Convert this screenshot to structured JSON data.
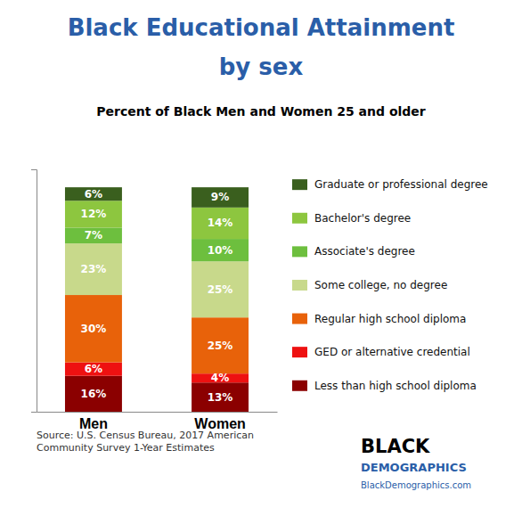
{
  "chart_data": {
    "type": "bar",
    "stacked": true,
    "title": "Black Educational Attainment\nby sex",
    "subtitle": "Percent of Black Men and Women 25 and older",
    "categories": [
      "Men",
      "Women"
    ],
    "series": [
      {
        "name": "Less than high school diploma",
        "color": "#8B0000",
        "values": [
          16,
          13
        ],
        "value_labels": [
          "16%",
          "13%"
        ]
      },
      {
        "name": "GED or alternative credential",
        "color": "#EE1111",
        "values": [
          6,
          4
        ],
        "value_labels": [
          "6%",
          "4%"
        ]
      },
      {
        "name": "Regular high school diploma",
        "color": "#E8620A",
        "values": [
          30,
          25
        ],
        "value_labels": [
          "30%",
          "25%"
        ]
      },
      {
        "name": "Some college, no degree",
        "color": "#C8D98B",
        "values": [
          23,
          25
        ],
        "value_labels": [
          "23%",
          "25%"
        ]
      },
      {
        "name": "Associate's degree",
        "color": "#6DBF3E",
        "values": [
          7,
          10
        ],
        "value_labels": [
          "7%",
          "10%"
        ]
      },
      {
        "name": "Bachelor's degree",
        "color": "#8DC63F",
        "values": [
          12,
          14
        ],
        "value_labels": [
          "12%",
          "14%"
        ]
      },
      {
        "name": "Graduate or professional degree",
        "color": "#3A5F1E",
        "values": [
          6,
          9
        ],
        "value_labels": [
          "6%",
          "9%"
        ]
      }
    ],
    "ylim": [
      0,
      108
    ],
    "yticks": [],
    "tick_labels": "x",
    "data_labels": true,
    "legend": "right",
    "grid": false,
    "annotations": [
      "Source: U.S. Census Bureau, 2017 American\nCommunity Survey 1-Year Estimates",
      "BLACK",
      "DEMOGRAPHICS",
      "BlackDemographics.com"
    ]
  }
}
